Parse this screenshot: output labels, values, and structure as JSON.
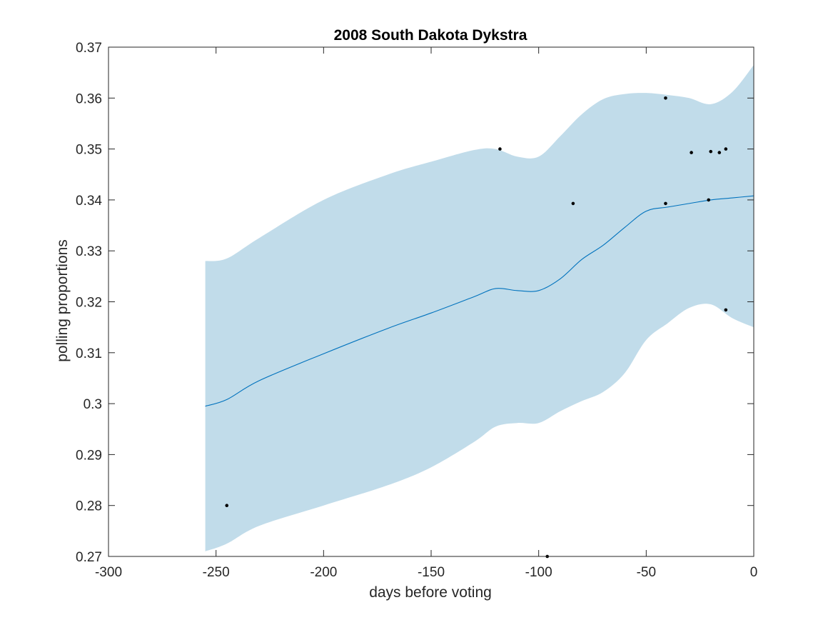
{
  "chart_data": {
    "type": "line",
    "title": "2008 South Dakota Dykstra",
    "xlabel": "days before voting",
    "ylabel": "polling proportions",
    "xlim": [
      -300,
      0
    ],
    "ylim": [
      0.27,
      0.37
    ],
    "xticks": [
      -300,
      -250,
      -200,
      -150,
      -100,
      -50,
      0
    ],
    "yticks": [
      0.27,
      0.28,
      0.29,
      0.3,
      0.31,
      0.32,
      0.33,
      0.34,
      0.35,
      0.36,
      0.37
    ],
    "xtick_labels": [
      "-300",
      "-250",
      "-200",
      "-150",
      "-100",
      "-50",
      "0"
    ],
    "ytick_labels": [
      "0.27",
      "0.28",
      "0.29",
      "0.3",
      "0.31",
      "0.32",
      "0.33",
      "0.34",
      "0.35",
      "0.36",
      "0.37"
    ],
    "grid": false,
    "colors": {
      "band": "#c1dcea",
      "line": "#0072bd",
      "points": "#000000",
      "axes": "#262626"
    },
    "trend": {
      "x": [
        -255,
        -245,
        -230,
        -200,
        -170,
        -150,
        -130,
        -120,
        -110,
        -100,
        -90,
        -80,
        -70,
        -60,
        -50,
        -40,
        -30,
        -20,
        -10,
        0
      ],
      "y": [
        0.2995,
        0.3008,
        0.3045,
        0.3098,
        0.3148,
        0.3178,
        0.321,
        0.3226,
        0.3222,
        0.3222,
        0.3245,
        0.3283,
        0.3311,
        0.3346,
        0.3378,
        0.3386,
        0.3393,
        0.34,
        0.3404,
        0.3408
      ]
    },
    "band": {
      "x": [
        -255,
        -245,
        -230,
        -200,
        -170,
        -150,
        -130,
        -120,
        -110,
        -100,
        -90,
        -80,
        -70,
        -60,
        -50,
        -40,
        -30,
        -20,
        -10,
        0
      ],
      "upper": [
        0.328,
        0.3285,
        0.3325,
        0.34,
        0.345,
        0.3475,
        0.3498,
        0.35,
        0.3485,
        0.3485,
        0.3525,
        0.3568,
        0.3598,
        0.3608,
        0.361,
        0.3606,
        0.36,
        0.3588,
        0.3612,
        0.3665
      ],
      "lower": [
        0.271,
        0.2725,
        0.276,
        0.28,
        0.284,
        0.2875,
        0.2925,
        0.2955,
        0.2962,
        0.2962,
        0.2985,
        0.3005,
        0.3023,
        0.306,
        0.3125,
        0.3158,
        0.3188,
        0.3195,
        0.3168,
        0.315
      ]
    },
    "points": {
      "x": [
        -245,
        -118,
        -96,
        -84,
        -41,
        -41,
        -29,
        -21,
        -20,
        -16,
        -13,
        -13
      ],
      "y": [
        0.28,
        0.35,
        0.27,
        0.3393,
        0.3393,
        0.36,
        0.3493,
        0.34,
        0.3495,
        0.3493,
        0.35,
        0.3184
      ]
    }
  }
}
